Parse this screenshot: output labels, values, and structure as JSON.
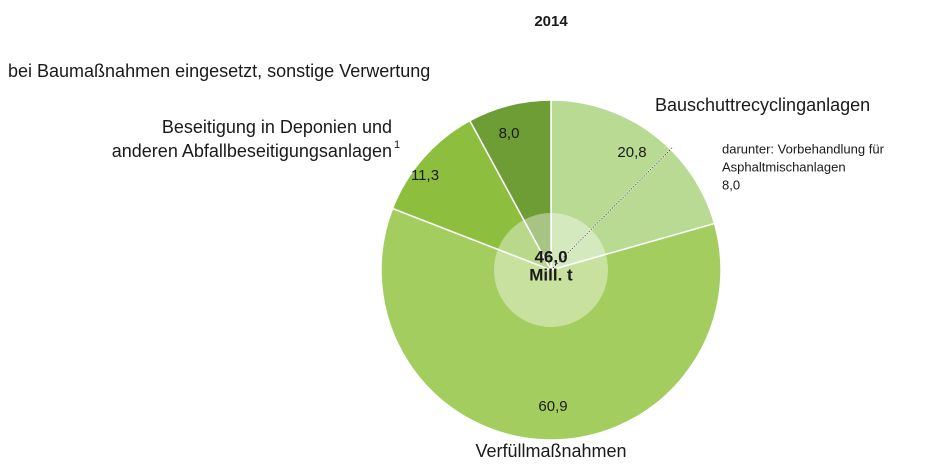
{
  "chart_data": {
    "type": "pie",
    "title": "2014",
    "categories": [
      [
        "Bauschuttrecyclinganlagen"
      ],
      [
        "Verfüllmaßnahmen"
      ],
      [
        "Beseitigung in Deponien und",
        "anderen Abfallbeseitigungsanlagen"
      ],
      [
        "bei Baumaßnahmen eingesetzt, sonstige Verwertung"
      ]
    ],
    "footnote": "1",
    "values": [
      20.8,
      60.9,
      11.3,
      8.0
    ],
    "value_labels": [
      "20,8",
      "60,9",
      "11,3",
      "8,0"
    ],
    "colors": [
      "#b9da93",
      "#a3cd5f",
      "#8dbe3e",
      "#6f9d35"
    ],
    "center_label": [
      "46,0",
      "Mill. t"
    ],
    "annotation": [
      "darunter: Vorbehandlung für",
      "Asphaltmischanlagen",
      "8,0"
    ]
  }
}
